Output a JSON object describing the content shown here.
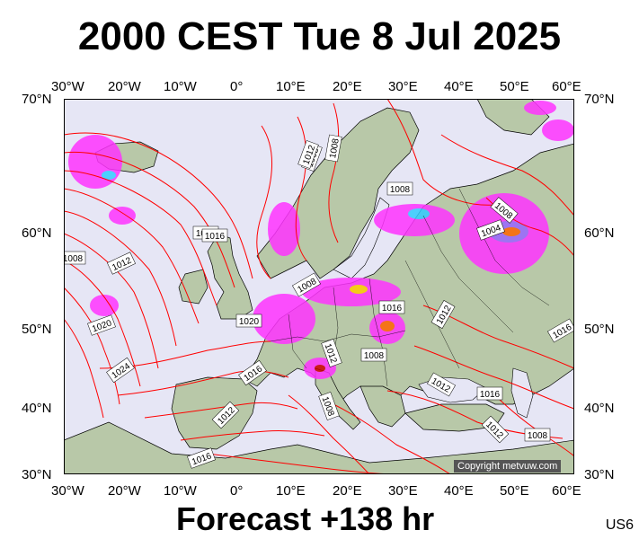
{
  "title": "2000 CEST Tue 8 Jul 2025",
  "footer": "Forecast +138 hr",
  "model_code": "US6",
  "copyright": "Copyright metvuw.com",
  "lon_ticks": [
    "30°W",
    "20°W",
    "10°W",
    "0°",
    "10°E",
    "20°E",
    "30°E",
    "40°E",
    "50°E",
    "60°E"
  ],
  "lat_ticks": [
    "70°N",
    "60°N",
    "50°N",
    "40°N",
    "30°N"
  ],
  "isobar_labels": [
    "1016",
    "1012",
    "1008",
    "1008",
    "1012",
    "1008",
    "1008",
    "1004",
    "1008",
    "1020",
    "1024",
    "1016",
    "1020",
    "1016",
    "1012",
    "1008",
    "1012",
    "1016",
    "1008",
    "1012",
    "1008",
    "1016",
    "1012",
    "1016",
    "1012",
    "1008",
    "1016"
  ],
  "colors": {
    "sea": "#e6e6f5",
    "land": "#b8c8a8",
    "isobar": "#ff0000",
    "precip_light": "#ff33ff",
    "precip_mid": "#9966ff",
    "precip_heavy": "#33ccff"
  }
}
